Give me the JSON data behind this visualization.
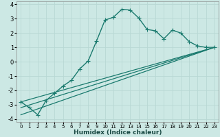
{
  "title": "",
  "xlabel": "Humidex (Indice chaleur)",
  "ylabel": "",
  "background_color": "#cce8e4",
  "grid_color": "#b8d8d4",
  "line_color": "#1a7a6e",
  "xlim": [
    -0.5,
    23.5
  ],
  "ylim": [
    -4.2,
    4.2
  ],
  "xticks": [
    0,
    1,
    2,
    3,
    4,
    5,
    6,
    7,
    8,
    9,
    10,
    11,
    12,
    13,
    14,
    15,
    16,
    17,
    18,
    19,
    20,
    21,
    22,
    23
  ],
  "yticks": [
    -4,
    -3,
    -2,
    -1,
    0,
    1,
    2,
    3,
    4
  ],
  "series": [
    {
      "x": [
        0,
        1,
        2,
        3,
        4,
        5,
        6,
        7,
        8,
        9,
        10,
        11,
        12,
        13,
        14,
        15,
        16,
        17,
        18,
        19,
        20,
        21,
        22,
        23
      ],
      "y": [
        -2.8,
        -3.2,
        -3.7,
        -2.7,
        -2.2,
        -1.7,
        -1.3,
        -0.5,
        0.05,
        1.45,
        2.9,
        3.1,
        3.65,
        3.6,
        3.05,
        2.25,
        2.15,
        1.6,
        2.2,
        2.0,
        1.4,
        1.1,
        1.0,
        1.0
      ],
      "marker": "+",
      "markersize": 4,
      "linewidth": 1.0
    },
    {
      "x": [
        0,
        23
      ],
      "y": [
        -2.8,
        1.0
      ],
      "linewidth": 0.9
    },
    {
      "x": [
        0,
        23
      ],
      "y": [
        -3.2,
        1.0
      ],
      "linewidth": 0.9
    },
    {
      "x": [
        0,
        23
      ],
      "y": [
        -3.7,
        1.0
      ],
      "linewidth": 0.9
    }
  ]
}
